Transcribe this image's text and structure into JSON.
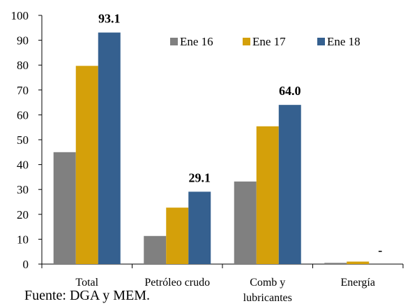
{
  "chart_data": {
    "type": "bar",
    "categories": [
      [
        "Total"
      ],
      [
        "Petróleo crudo"
      ],
      [
        "Comb y",
        "lubricantes"
      ],
      [
        "Energía"
      ]
    ],
    "series": [
      {
        "name": "Ene 16",
        "color": "#808080",
        "values": [
          45.0,
          11.3,
          33.2,
          0.5
        ]
      },
      {
        "name": "Ene 17",
        "color": "#D4A00A",
        "values": [
          79.7,
          22.7,
          55.4,
          1.0
        ]
      },
      {
        "name": "Ene 18",
        "color": "#35608F",
        "values": [
          93.1,
          29.1,
          64.0,
          0.0
        ]
      }
    ],
    "data_labels": [
      {
        "series": 2,
        "category": 0,
        "text": "93.1"
      },
      {
        "series": 2,
        "category": 1,
        "text": "29.1"
      },
      {
        "series": 2,
        "category": 2,
        "text": "64.0"
      },
      {
        "series": 2,
        "category": 3,
        "text": "-"
      }
    ],
    "ylim": [
      0,
      100
    ],
    "yticks": [
      0,
      10,
      20,
      30,
      40,
      50,
      60,
      70,
      80,
      90,
      100
    ],
    "legend_position": "top-right",
    "grid": false
  },
  "source_note": "Fuente: DGA y MEM."
}
